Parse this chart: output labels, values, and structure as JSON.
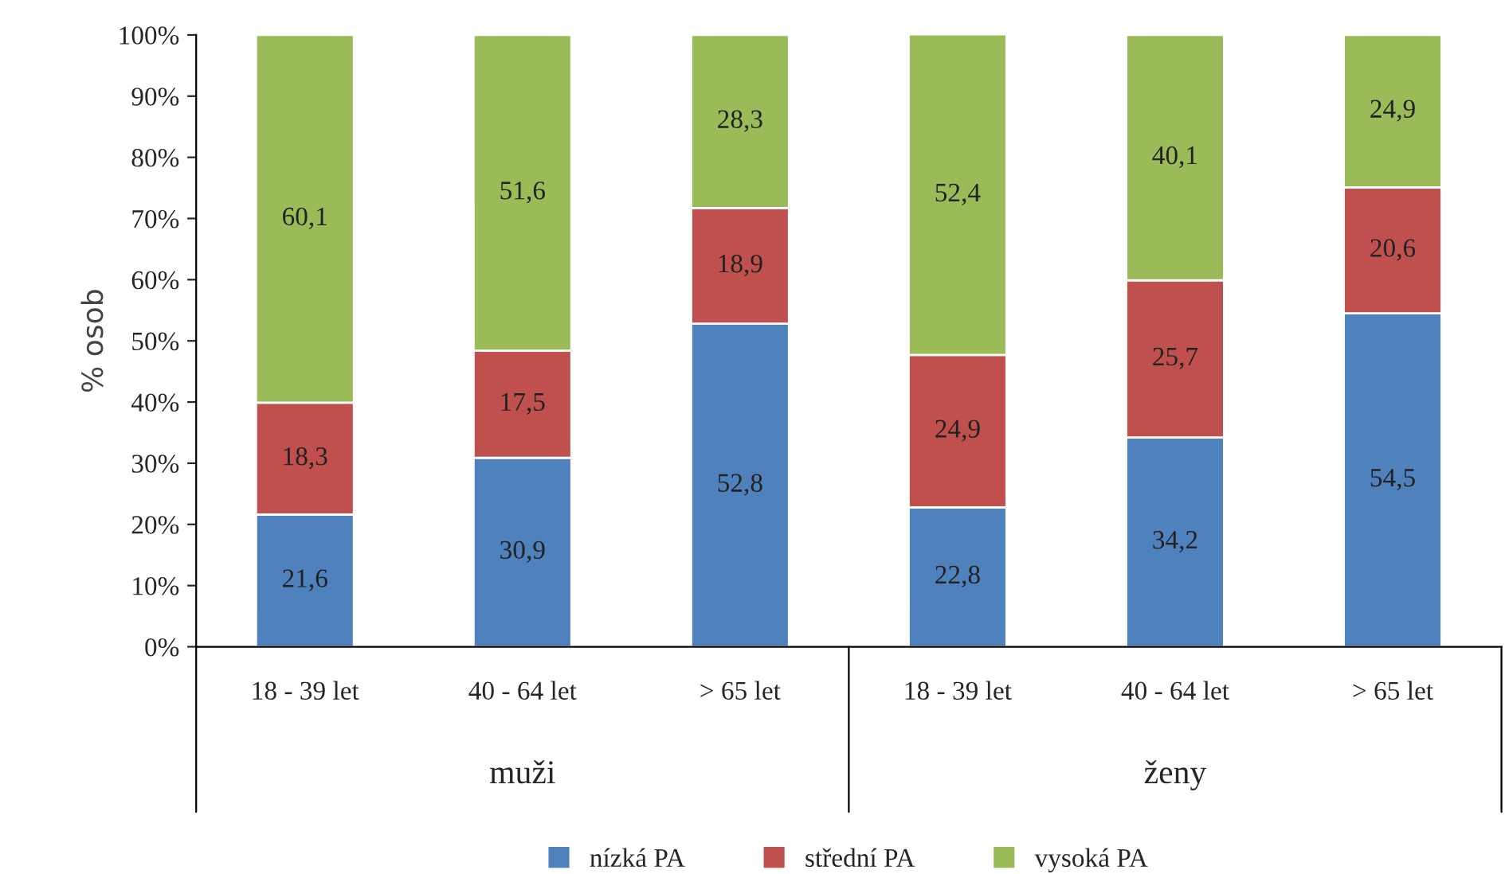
{
  "chart_data": {
    "type": "bar",
    "stacked": true,
    "ylabel": "% osob",
    "categories": [
      "18 - 39 let",
      "40 - 64 let",
      "> 65 let",
      "18 - 39 let",
      "40 - 64 let",
      "> 65 let"
    ],
    "series": [
      {
        "name": "nízká PA",
        "color": "#4f81bd",
        "values": [
          21.6,
          30.9,
          52.8,
          22.8,
          34.2,
          54.5
        ],
        "value_labels": [
          "21,6",
          "30,9",
          "52,8",
          "22,8",
          "34,2",
          "54,5"
        ]
      },
      {
        "name": "střední PA",
        "color": "#c0504d",
        "values": [
          18.3,
          17.5,
          18.9,
          24.9,
          25.7,
          20.6
        ],
        "value_labels": [
          "18,3",
          "17,5",
          "18,9",
          "24,9",
          "25,7",
          "20,6"
        ]
      },
      {
        "name": "vysoká PA",
        "color": "#9bbb59",
        "values": [
          60.1,
          51.6,
          28.3,
          52.4,
          40.1,
          24.9
        ],
        "value_labels": [
          "60,1",
          "51,6",
          "28,3",
          "52,4",
          "40,1",
          "24,9"
        ]
      }
    ],
    "ylim": [
      0,
      100
    ],
    "yticks": [
      {
        "value": 0,
        "label": "0%"
      },
      {
        "value": 10,
        "label": "10%"
      },
      {
        "value": 20,
        "label": "20%"
      },
      {
        "value": 30,
        "label": "30%"
      },
      {
        "value": 40,
        "label": "40%"
      },
      {
        "value": 50,
        "label": "50%"
      },
      {
        "value": 60,
        "label": "60%"
      },
      {
        "value": 70,
        "label": "70%"
      },
      {
        "value": 80,
        "label": "80%"
      },
      {
        "value": 90,
        "label": "90%"
      },
      {
        "value": 100,
        "label": "100%"
      }
    ],
    "grid": false,
    "legend": "bottom",
    "annotations": [
      "muži",
      "ženy"
    ]
  }
}
